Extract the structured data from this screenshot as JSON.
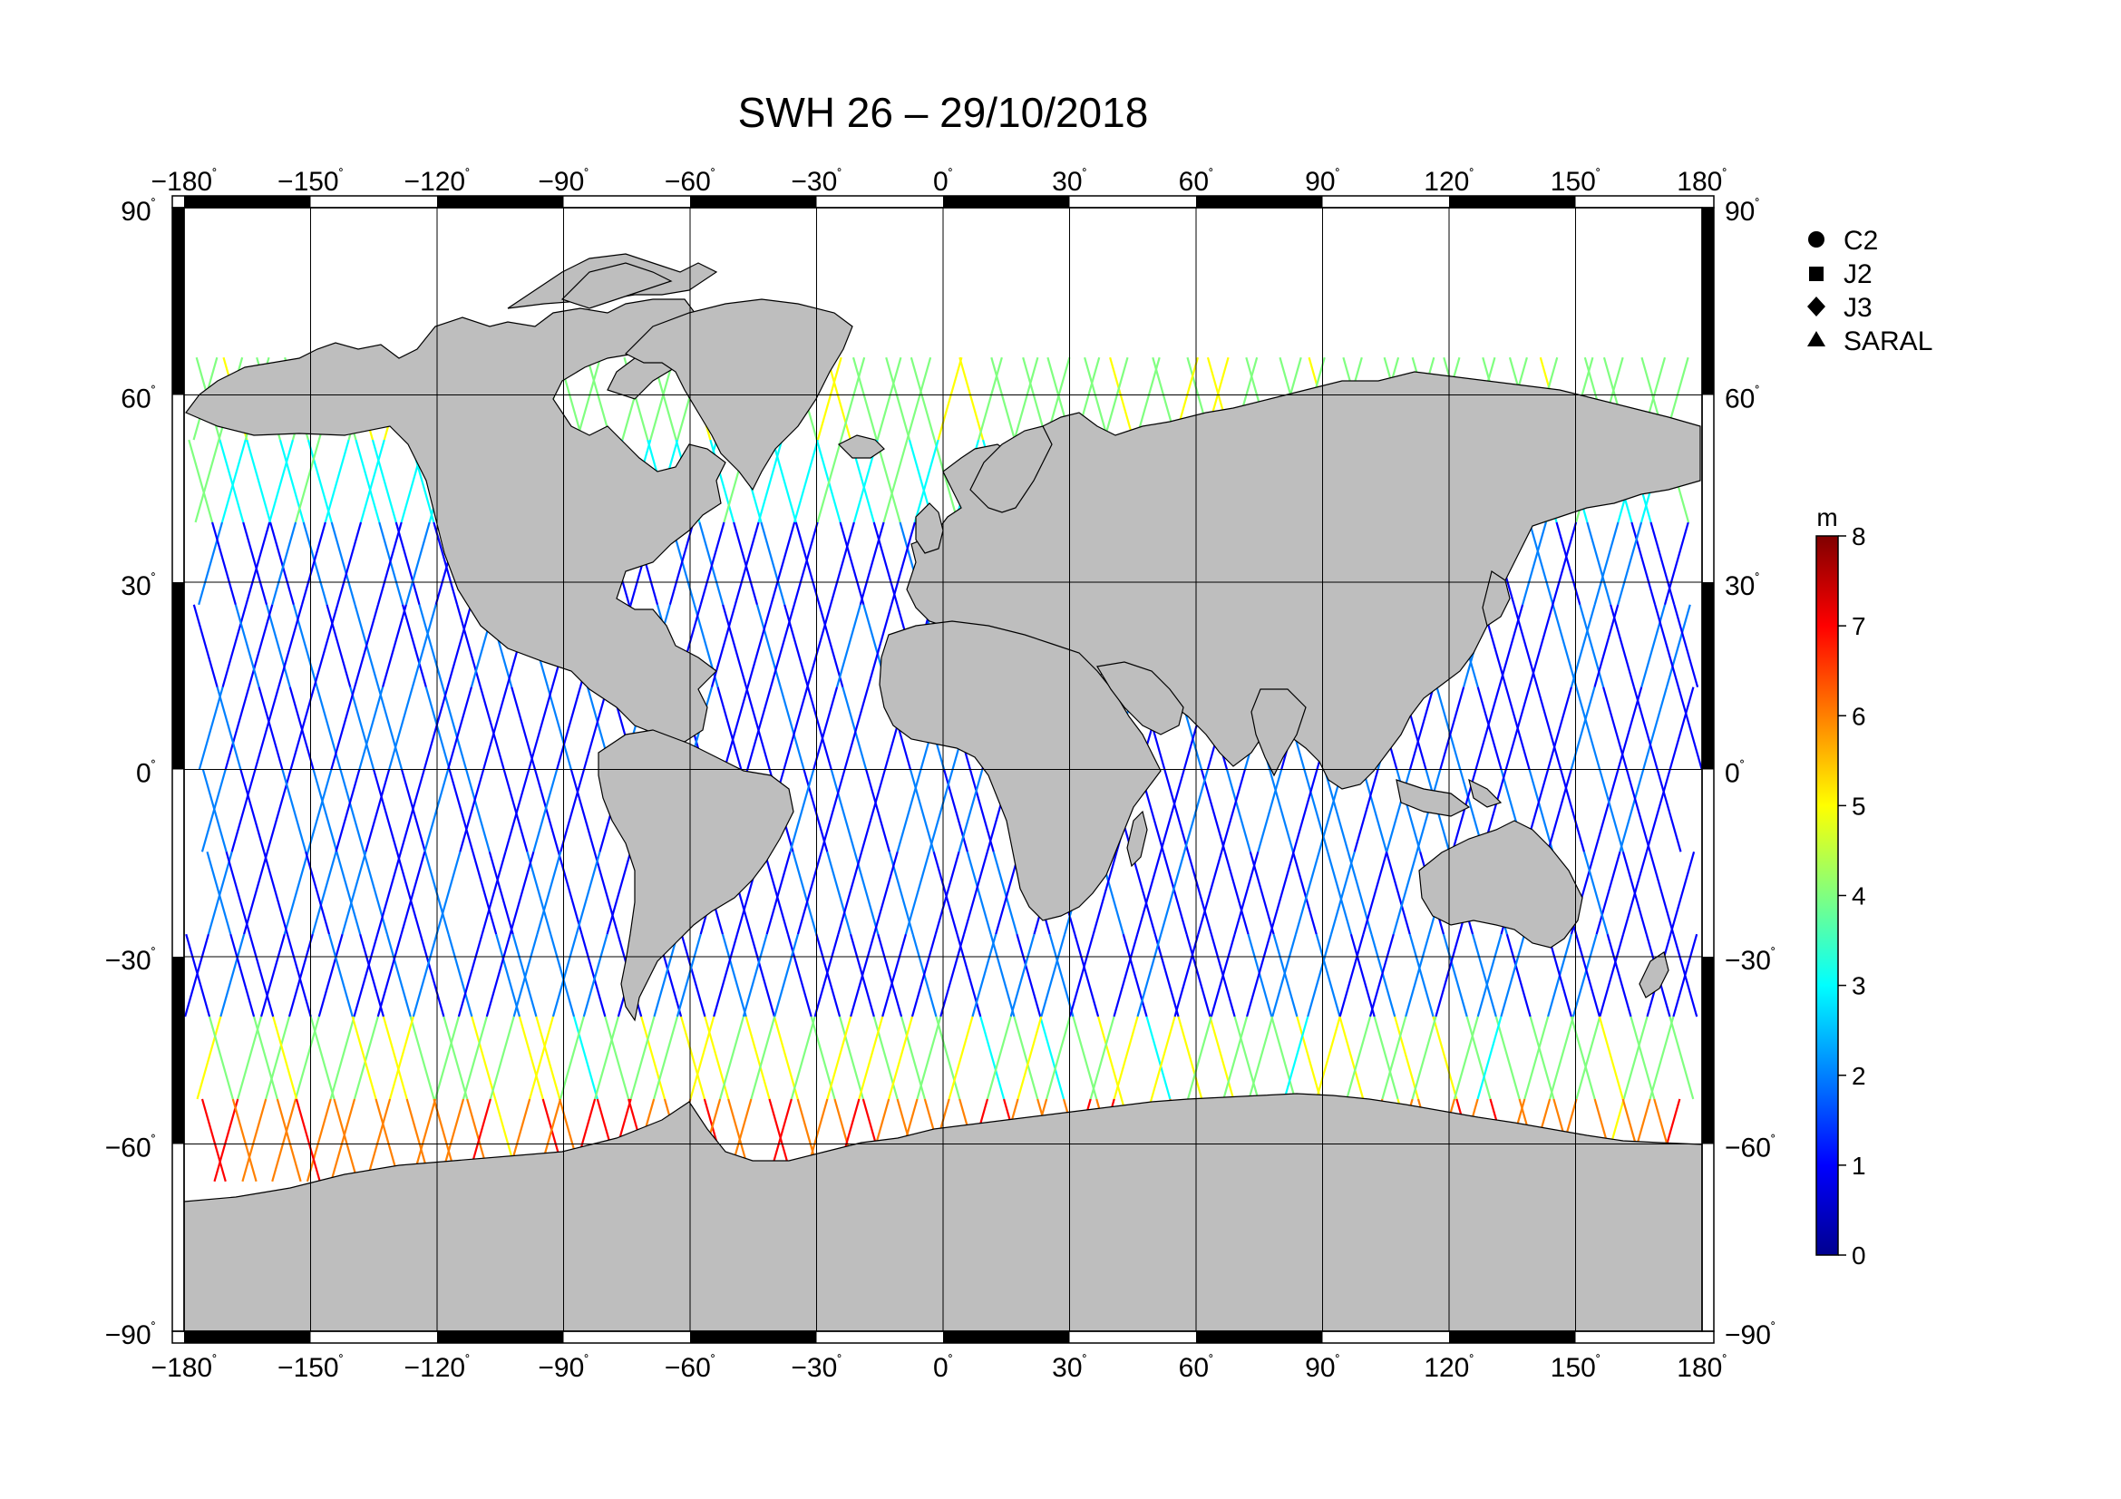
{
  "title": "SWH 26 – 29/10/2018",
  "map": {
    "lon_ticks": [
      -180,
      -150,
      -120,
      -90,
      -60,
      -30,
      0,
      30,
      60,
      90,
      120,
      150,
      180
    ],
    "lat_ticks": [
      90,
      60,
      30,
      0,
      -30,
      -60,
      -90
    ],
    "lon_tick_labels": [
      "−180",
      "−150",
      "−120",
      "−90",
      "−60",
      "−30",
      "0",
      "30",
      "60",
      "90",
      "120",
      "150",
      "180"
    ],
    "lat_tick_labels": [
      "90",
      "60",
      "30",
      "0",
      "−30",
      "−60",
      "−90"
    ],
    "degree_mark": "˚",
    "land_color": "#bebebe",
    "ocean_color": "#ffffff"
  },
  "legend": {
    "items": [
      {
        "label": "C2",
        "symbol": "circle-icon"
      },
      {
        "label": "J2",
        "symbol": "square-icon"
      },
      {
        "label": "J3",
        "symbol": "diamond-icon"
      },
      {
        "label": "SARAL",
        "symbol": "triangle-icon"
      }
    ]
  },
  "colorbar": {
    "unit": "m",
    "min": 0,
    "max": 8,
    "tick_labels": [
      "0",
      "1",
      "2",
      "3",
      "4",
      "5",
      "6",
      "7",
      "8"
    ],
    "colors": [
      "#00008f",
      "#0000ff",
      "#0080ff",
      "#00ffff",
      "#80ff80",
      "#ffff00",
      "#ff8000",
      "#ff0000",
      "#800000"
    ]
  }
}
